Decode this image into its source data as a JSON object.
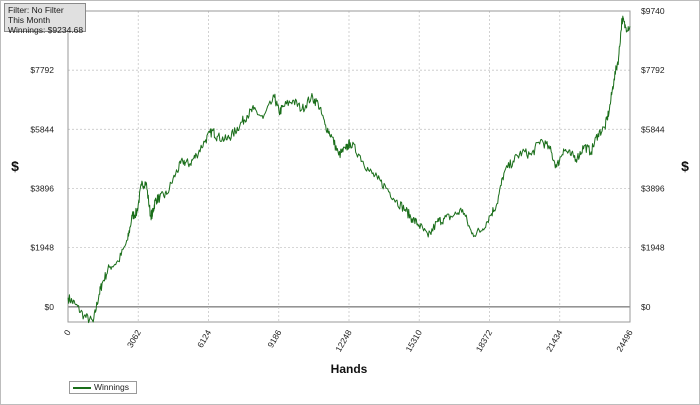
{
  "info": {
    "filter": "Filter: No Filter",
    "period": "This Month",
    "winnings": "Winnings: $9234.68"
  },
  "legend": {
    "label": "Winnings"
  },
  "colors": {
    "line": "#1a6e1a",
    "grid": "#c8c8c8",
    "zero_line": "#555555"
  },
  "chart_data": {
    "type": "line",
    "xlabel": "Hands",
    "ylabel_left": "$",
    "ylabel_right": "$",
    "xlim": [
      0,
      24496
    ],
    "ylim": [
      -500,
      9740
    ],
    "x_ticks": [
      "0",
      "3062",
      "6124",
      "9186",
      "12248",
      "15310",
      "18372",
      "21434",
      "24496"
    ],
    "x_tick_values": [
      0,
      3062,
      6124,
      9186,
      12248,
      15310,
      18372,
      21434,
      24496
    ],
    "y_ticks": [
      "$0",
      "$1948",
      "$3896",
      "$5844",
      "$7792",
      "$9740"
    ],
    "y_tick_values": [
      0,
      1948,
      3896,
      5844,
      7792,
      9740
    ],
    "grid": true,
    "legend_position": "bottom-left",
    "series": [
      {
        "name": "Winnings",
        "x": [
          0,
          300,
          700,
          1100,
          1350,
          1500,
          1800,
          2200,
          2600,
          2800,
          3000,
          3200,
          3400,
          3600,
          3700,
          3800,
          4000,
          4300,
          4700,
          5000,
          5300,
          5600,
          6000,
          6300,
          6500,
          6900,
          7200,
          7500,
          7800,
          8100,
          8500,
          9000,
          9200,
          9400,
          9800,
          10200,
          10600,
          10900,
          11200,
          11500,
          11800,
          12100,
          12300,
          12700,
          13100,
          13500,
          13900,
          14300,
          14700,
          15000,
          15300,
          15700,
          16100,
          16400,
          16800,
          17200,
          17600,
          18000,
          18400,
          18700,
          19000,
          19400,
          19800,
          20200,
          20600,
          21000,
          21300,
          21600,
          21900,
          22200,
          22500,
          22800,
          23100,
          23400,
          23600,
          23800,
          24000,
          24150,
          24300,
          24496
        ],
        "y": [
          300,
          100,
          -300,
          -500,
          400,
          800,
          1300,
          1500,
          2200,
          3000,
          3100,
          4000,
          4100,
          3000,
          3100,
          3500,
          3600,
          3700,
          4400,
          4800,
          4700,
          5000,
          5500,
          5800,
          5600,
          5500,
          5700,
          6000,
          6300,
          6500,
          6200,
          6900,
          6400,
          6600,
          6800,
          6500,
          6900,
          6700,
          6000,
          5600,
          5000,
          5200,
          5400,
          5000,
          4500,
          4200,
          3900,
          3500,
          3200,
          2900,
          2700,
          2300,
          2800,
          2900,
          3000,
          3200,
          2400,
          2500,
          3000,
          3400,
          4400,
          4800,
          5100,
          5000,
          5500,
          5200,
          4600,
          5200,
          5000,
          4900,
          5300,
          5100,
          5700,
          5900,
          6500,
          7500,
          8200,
          9500,
          9200,
          9234.68
        ]
      }
    ]
  }
}
